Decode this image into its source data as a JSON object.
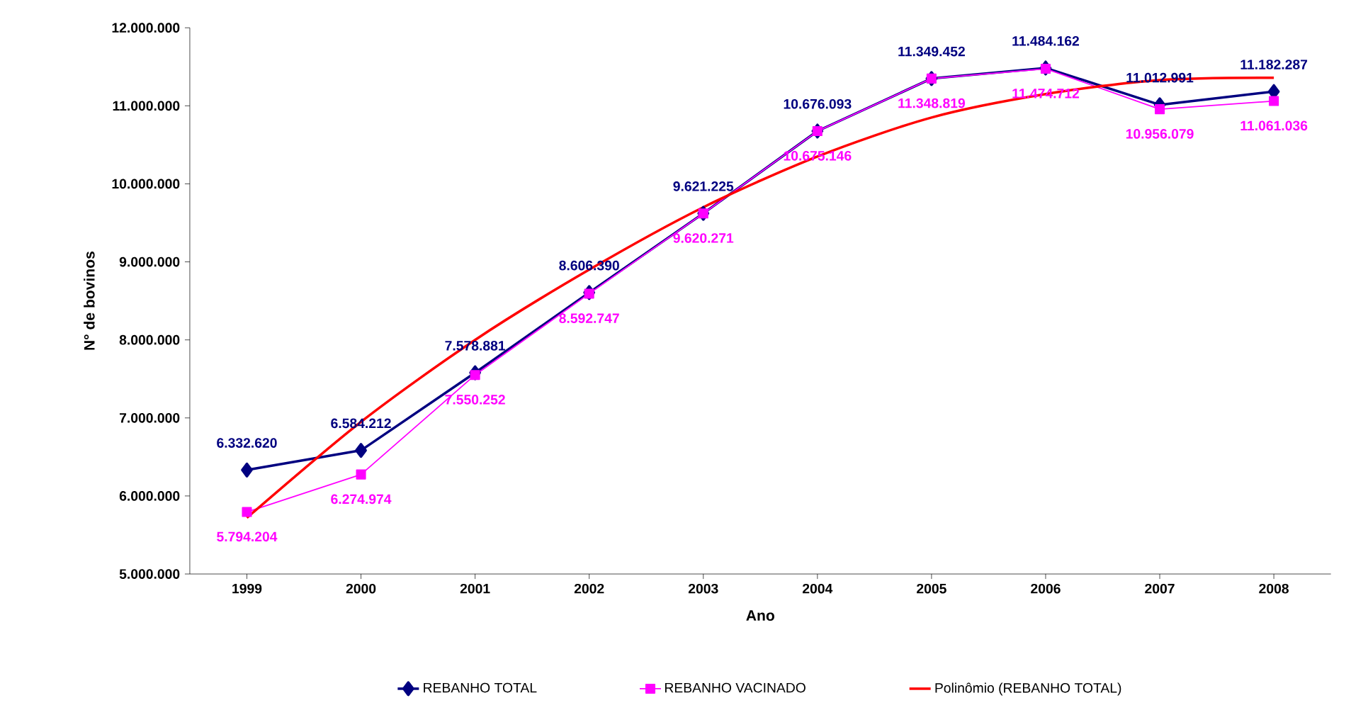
{
  "chart_data": {
    "type": "line",
    "xlabel": "Ano",
    "ylabel": "N° de bovinos",
    "categories": [
      "1999",
      "2000",
      "2001",
      "2002",
      "2003",
      "2004",
      "2005",
      "2006",
      "2007",
      "2008"
    ],
    "ylim": [
      5000000,
      12000000
    ],
    "yticks": [
      {
        "value": 5000000,
        "label": "5.000.000"
      },
      {
        "value": 6000000,
        "label": "6.000.000"
      },
      {
        "value": 7000000,
        "label": "7.000.000"
      },
      {
        "value": 8000000,
        "label": "8.000.000"
      },
      {
        "value": 9000000,
        "label": "9.000.000"
      },
      {
        "value": 10000000,
        "label": "10.000.000"
      },
      {
        "value": 11000000,
        "label": "11.000.000"
      },
      {
        "value": 12000000,
        "label": "12.000.000"
      }
    ],
    "legend": "bottom",
    "series": [
      {
        "name": "REBANHO TOTAL",
        "color": "#000080",
        "marker": "diamond",
        "values": [
          6332620,
          6584212,
          7578881,
          8606390,
          9621225,
          10676093,
          11349452,
          11484162,
          11012991,
          11182287
        ],
        "value_labels": [
          "6.332.620",
          "6.584.212",
          "7.578.881",
          "8.606.390",
          "9.621.225",
          "10.676.093",
          "11.349.452",
          "11.484.162",
          "11.012.991",
          "11.182.287"
        ]
      },
      {
        "name": "REBANHO VACINADO",
        "color": "#ff00ff",
        "marker": "square",
        "values": [
          5794204,
          6274974,
          7550252,
          8592747,
          9620271,
          10675146,
          11348819,
          11474712,
          10956079,
          11061036
        ],
        "value_labels": [
          "5.794.204",
          "6.274.974",
          "7.550.252",
          "8.592.747",
          "9.620.271",
          "10.675.146",
          "11.348.819",
          "11.474.712",
          "10.956.079",
          "11.061.036"
        ]
      },
      {
        "name": "Polinômio (REBANHO TOTAL)",
        "color": "#ff0000",
        "marker": "none",
        "values": [
          5720000,
          6950000,
          8000000,
          8900000,
          9700000,
          10350000,
          10850000,
          11150000,
          11330000,
          11360000
        ]
      }
    ]
  }
}
